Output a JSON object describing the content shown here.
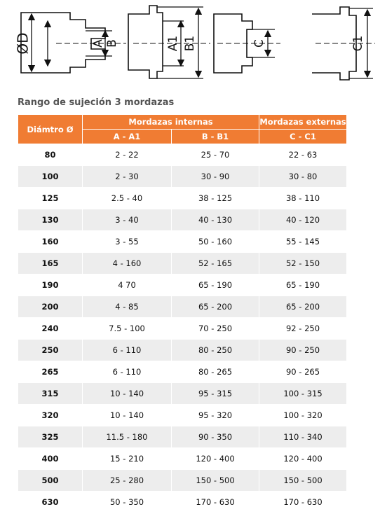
{
  "diagram": {
    "labels": [
      "ØD",
      "A",
      "B",
      "A1",
      "B1",
      "C",
      "C1"
    ]
  },
  "title": "Rango de sujeción 3 mordazas",
  "table": {
    "headers": {
      "diameter": "Diámtro Ø",
      "internal": "Mordazas internas",
      "external": "Mordazas externas",
      "sub": [
        "A - A1",
        "B - B1",
        "C - C1"
      ]
    },
    "rows": [
      [
        "80",
        "2 - 22",
        "25 - 70",
        "22 - 63"
      ],
      [
        "100",
        "2 - 30",
        "30 - 90",
        "30 - 80"
      ],
      [
        "125",
        "2.5 - 40",
        "38 - 125",
        "38 - 110"
      ],
      [
        "130",
        "3 - 40",
        "40 - 130",
        "40 - 120"
      ],
      [
        "160",
        "3 - 55",
        "50 - 160",
        "55 - 145"
      ],
      [
        "165",
        "4 - 160",
        "52 - 165",
        "52 - 150"
      ],
      [
        "190",
        "4 70",
        "65 - 190",
        "65 - 190"
      ],
      [
        "200",
        "4 - 85",
        "65 - 200",
        "65 - 200"
      ],
      [
        "240",
        "7.5 - 100",
        "70 - 250",
        "92 - 250"
      ],
      [
        "250",
        "6 - 110",
        "80 - 250",
        "90 - 250"
      ],
      [
        "265",
        "6 - 110",
        "80 - 265",
        "90 - 265"
      ],
      [
        "315",
        "10 - 140",
        "95 - 315",
        "100 - 315"
      ],
      [
        "320",
        "10 - 140",
        "95 - 320",
        "100 - 320"
      ],
      [
        "325",
        "11.5 - 180",
        "90 - 350",
        "110 - 340"
      ],
      [
        "400",
        "15 - 210",
        "120 - 400",
        "120 - 400"
      ],
      [
        "500",
        "25 - 280",
        "150 - 500",
        "150 - 500"
      ],
      [
        "630",
        "50 - 350",
        "170 - 630",
        "170 - 630"
      ]
    ]
  }
}
